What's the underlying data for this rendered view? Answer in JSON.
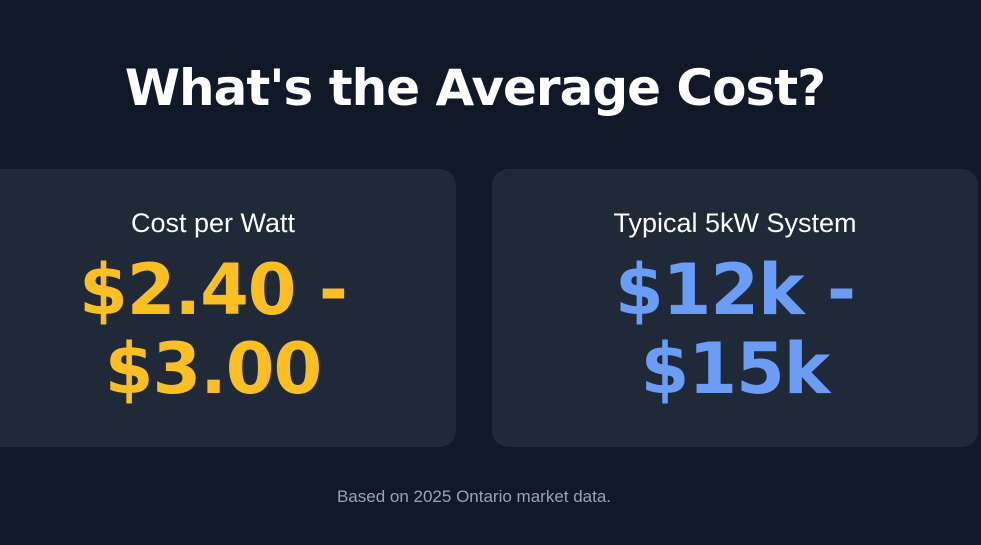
{
  "title": "What's the Average Cost?",
  "cards": [
    {
      "label": "Cost per Watt",
      "value_line1": "$2.40 -",
      "value_line2": "$3.00",
      "value_color": "#fbbf24"
    },
    {
      "label": "Typical 5kW System",
      "value_line1": "$12k -",
      "value_line2": "$15k",
      "value_color": "#6b9cf6"
    }
  ],
  "footnote": "Based on 2025 Ontario market data.",
  "colors": {
    "background": "#111827",
    "card_background": "#1f2937",
    "footnote_text": "#9ca3af"
  }
}
